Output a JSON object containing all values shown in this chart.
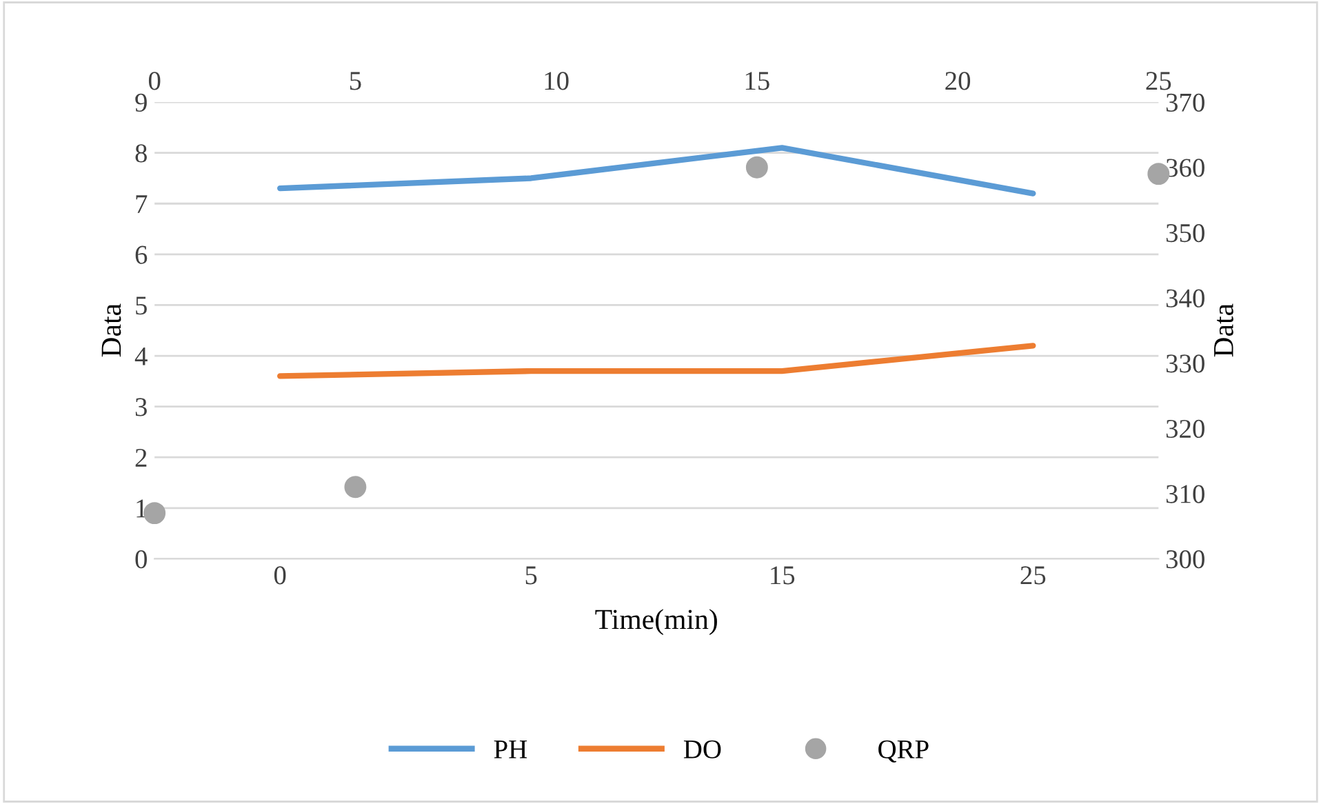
{
  "chart_data": [
    {
      "type": "line",
      "xlabel": "Time(min)",
      "ylabel": "Data",
      "categories": [
        "0",
        "5",
        "15",
        "25"
      ],
      "series": [
        {
          "name": "PH",
          "color": "#5b9bd5",
          "values": [
            7.3,
            7.5,
            8.1,
            7.2
          ]
        },
        {
          "name": "DO",
          "color": "#ed7d31",
          "values": [
            3.6,
            3.7,
            3.7,
            4.2
          ]
        }
      ],
      "ylim": [
        0,
        9
      ],
      "yticks": [
        0,
        1,
        2,
        3,
        4,
        5,
        6,
        7,
        8,
        9
      ],
      "grid": "y",
      "legend": "bottom",
      "marker": "none",
      "line_style": "solid"
    },
    {
      "type": "scatter",
      "ylabel": "Data",
      "series": [
        {
          "name": "QRP",
          "color": "#a5a5a5",
          "x": [
            0,
            5,
            15,
            25
          ],
          "values": [
            307,
            311,
            360,
            359
          ]
        }
      ],
      "xlim": [
        0,
        25
      ],
      "xticks": [
        0,
        5,
        10,
        15,
        20,
        25
      ],
      "ylim": [
        300,
        370
      ],
      "yticks": [
        300,
        310,
        320,
        330,
        340,
        350,
        360,
        370
      ],
      "legend": "bottom",
      "marker": "circle"
    }
  ]
}
